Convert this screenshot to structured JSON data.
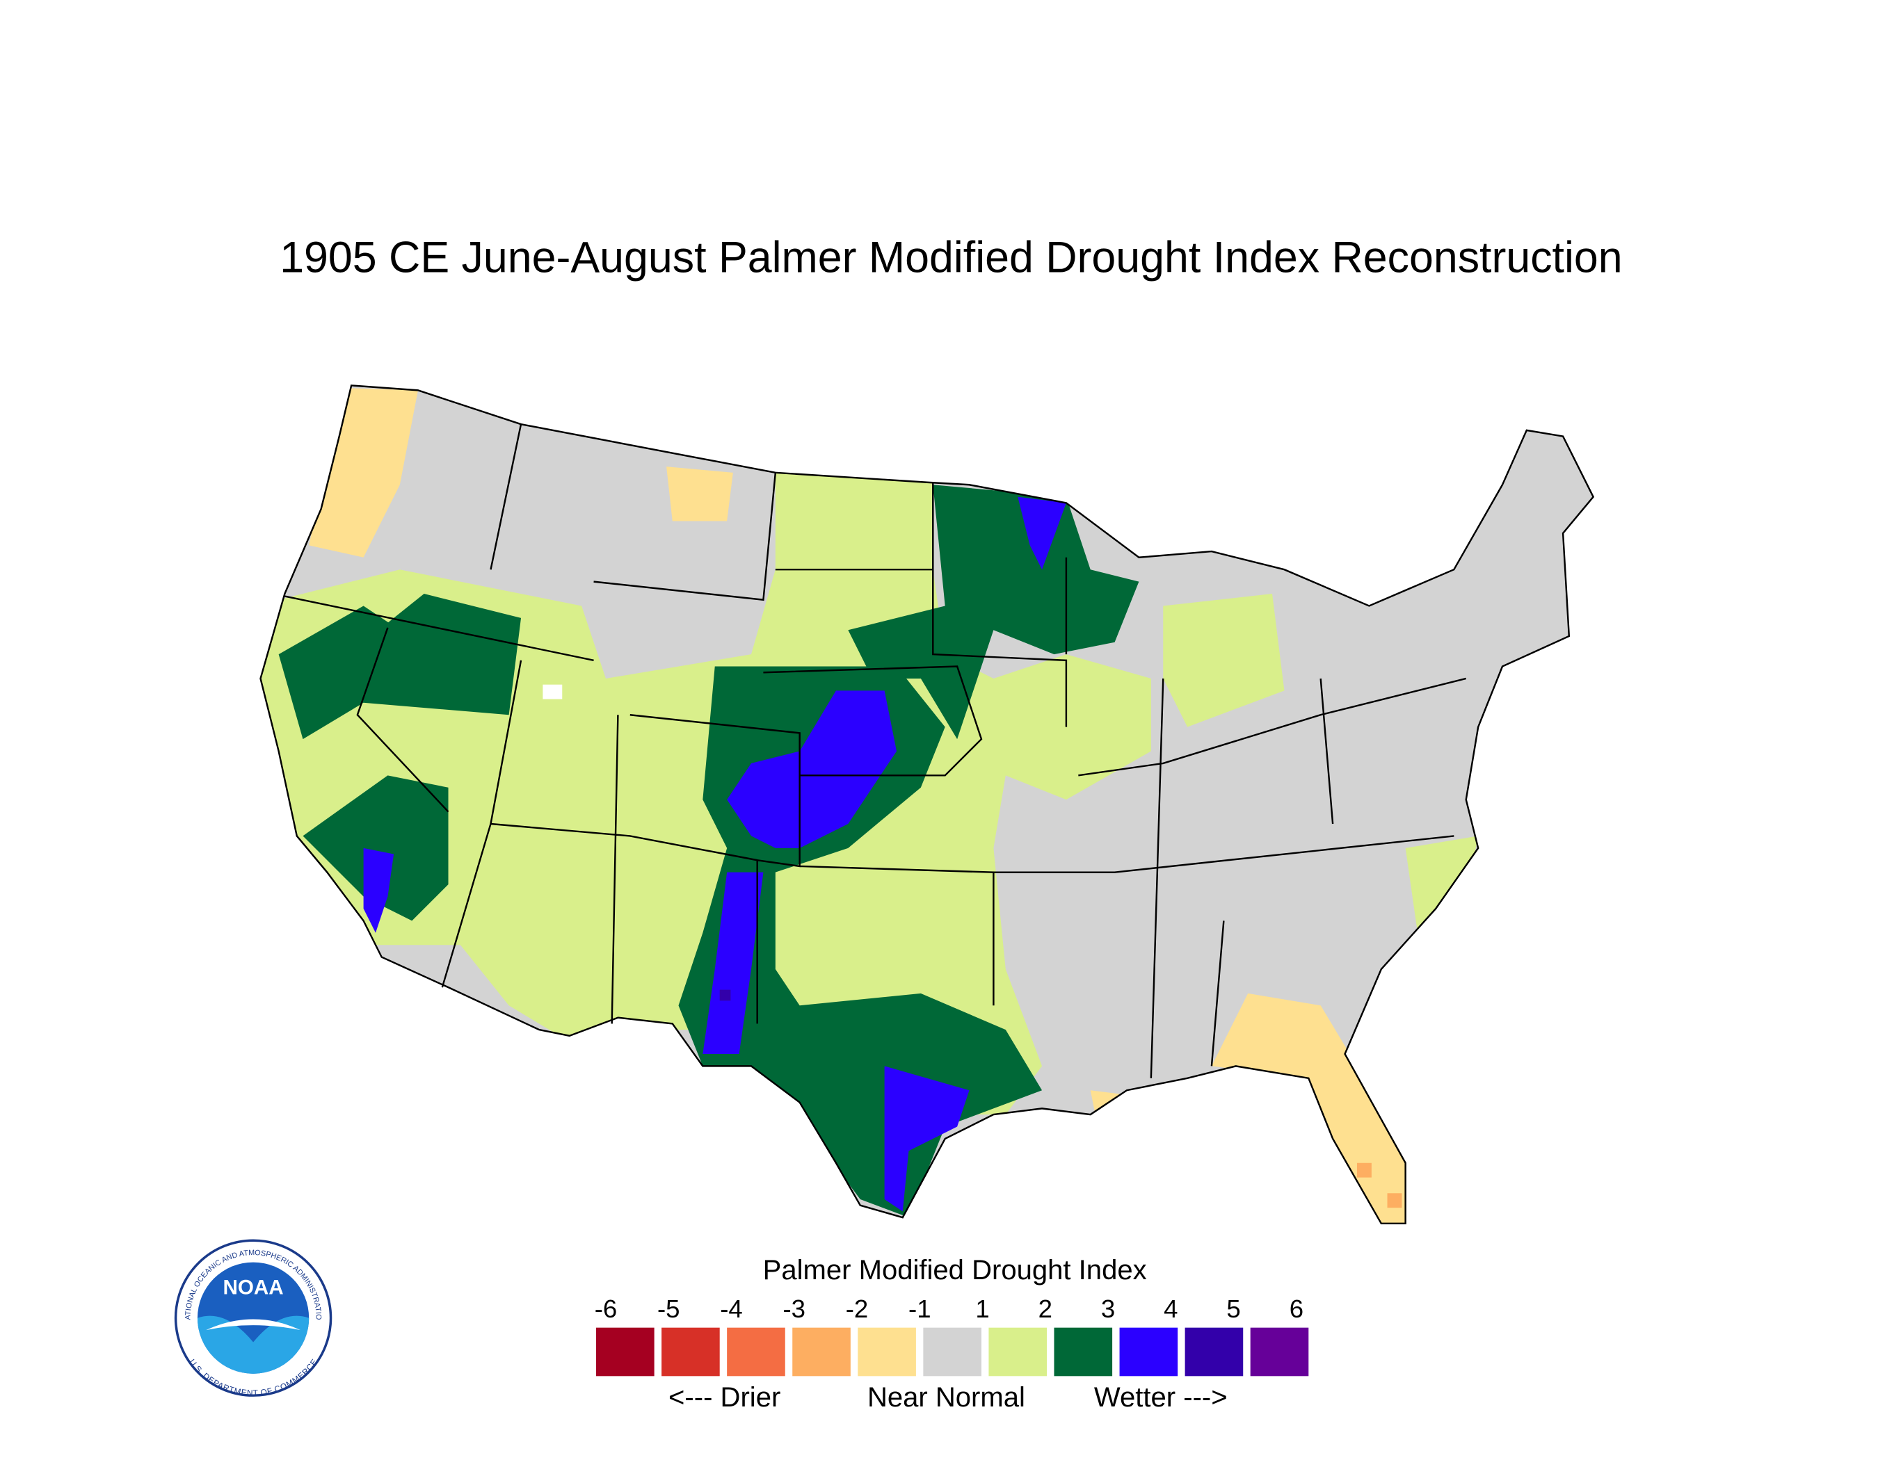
{
  "title": "1905 CE  June-August  Palmer Modified Drought Index Reconstruction",
  "legend": {
    "title": "Palmer Modified Drought Index",
    "ticks": [
      "-6",
      "-5",
      "-4",
      "-3",
      "-2",
      "-1",
      "1",
      "2",
      "3",
      "4",
      "5",
      "6"
    ],
    "colors": [
      "#a50021",
      "#d73027",
      "#f46d43",
      "#fdae61",
      "#fee090",
      "#d3d3d3",
      "#d9ef8b",
      "#006837",
      "#2b00ff",
      "#3300aa",
      "#660099"
    ],
    "captions": [
      "<--- Drier",
      "Near Normal",
      "Wetter --->"
    ]
  },
  "logo": {
    "name": "NOAA",
    "top_text": "NATIONAL OCEANIC AND ATMOSPHERIC ADMINISTRATION",
    "bottom_text": "U.S. DEPARTMENT OF COMMERCE"
  }
}
